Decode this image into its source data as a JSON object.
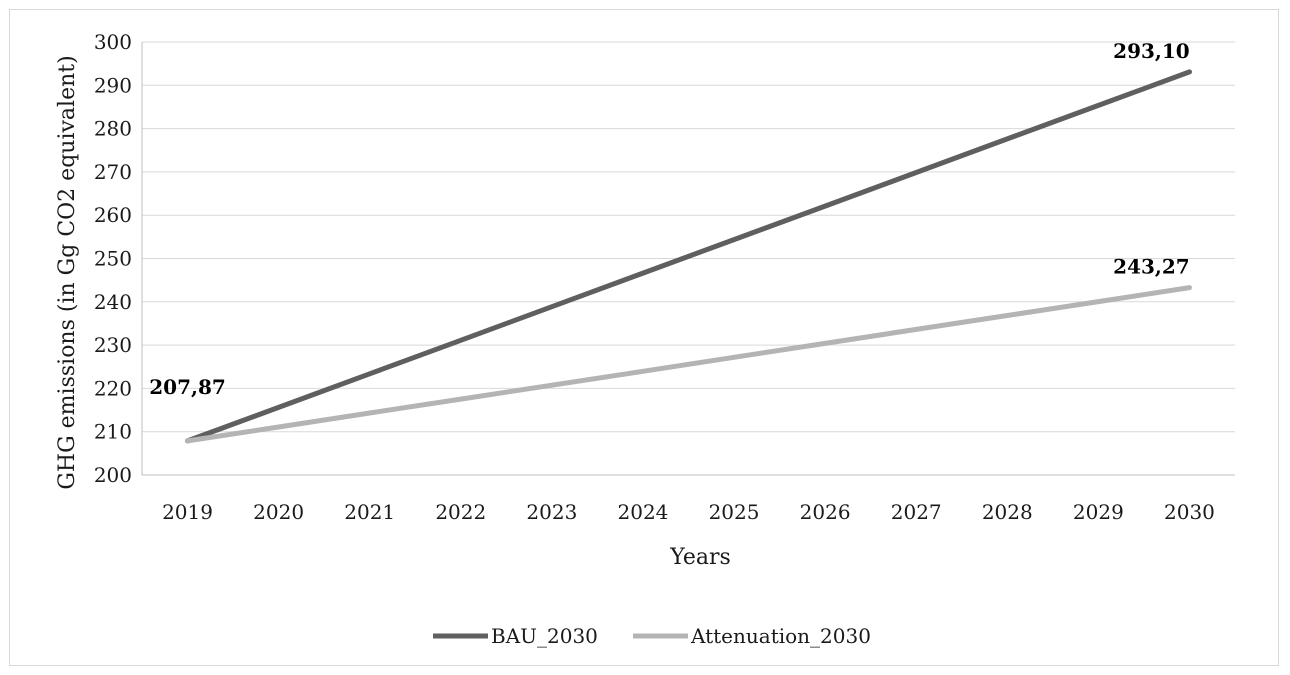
{
  "chart_data": {
    "type": "line",
    "title": "",
    "xlabel": "Years",
    "ylabel": "GHG emissions (in Gg CO2 equivalent)",
    "x": [
      "2019",
      "2020",
      "2021",
      "2022",
      "2023",
      "2024",
      "2025",
      "2026",
      "2027",
      "2028",
      "2029",
      "2030"
    ],
    "ylim": [
      200,
      300
    ],
    "yticks": [
      "200",
      "210",
      "220",
      "230",
      "240",
      "250",
      "260",
      "270",
      "280",
      "290",
      "300"
    ],
    "grid": true,
    "legend_position": "bottom",
    "series": [
      {
        "name": "BAU_2030",
        "color": "#5f5f5f",
        "values": [
          207.87,
          215.62,
          223.37,
          231.12,
          238.87,
          246.62,
          254.36,
          262.11,
          269.86,
          277.61,
          285.36,
          293.1
        ]
      },
      {
        "name": "Attenuation_2030",
        "color": "#b4b4b4",
        "values": [
          207.87,
          211.09,
          214.31,
          217.52,
          220.74,
          223.96,
          227.18,
          230.4,
          233.62,
          236.83,
          240.05,
          243.27
        ]
      }
    ],
    "data_labels": [
      {
        "text": "207,87",
        "series": 0,
        "index": 0
      },
      {
        "text": "293,10",
        "series": 0,
        "index": 11
      },
      {
        "text": "243,27",
        "series": 1,
        "index": 11
      }
    ]
  }
}
